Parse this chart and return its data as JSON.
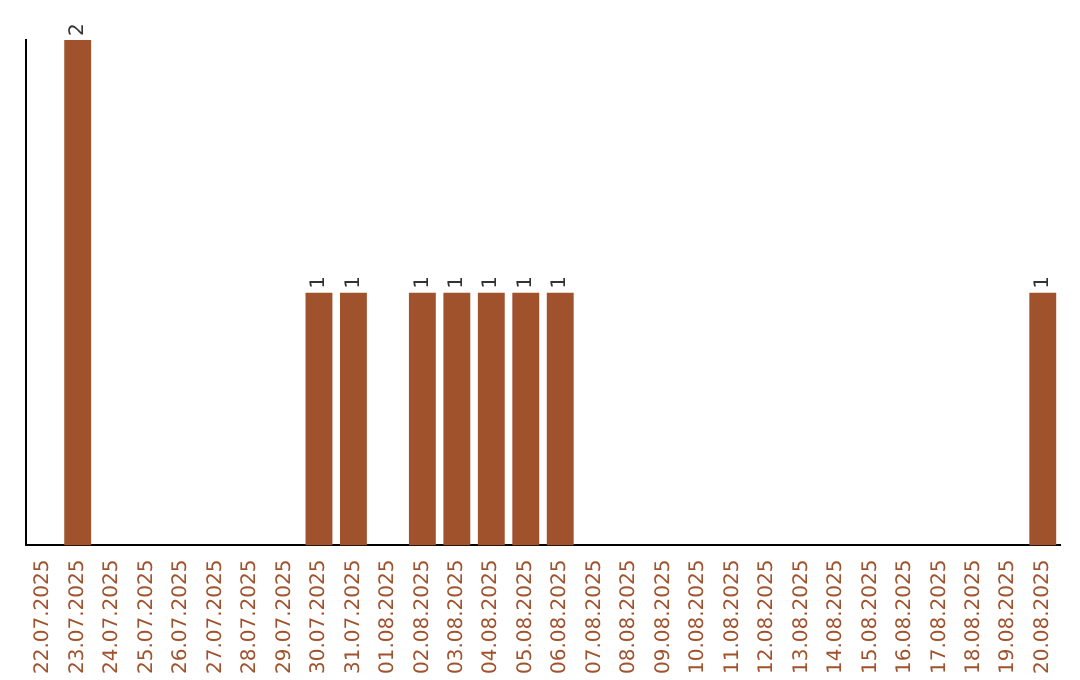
{
  "chart_data": {
    "type": "bar",
    "categories": [
      "22.07.2025",
      "23.07.2025",
      "24.07.2025",
      "25.07.2025",
      "26.07.2025",
      "27.07.2025",
      "28.07.2025",
      "29.07.2025",
      "30.07.2025",
      "31.07.2025",
      "01.08.2025",
      "02.08.2025",
      "03.08.2025",
      "04.08.2025",
      "05.08.2025",
      "06.08.2025",
      "07.08.2025",
      "08.08.2025",
      "09.08.2025",
      "10.08.2025",
      "11.08.2025",
      "12.08.2025",
      "13.08.2025",
      "14.08.2025",
      "15.08.2025",
      "16.08.2025",
      "17.08.2025",
      "18.08.2025",
      "19.08.2025",
      "20.08.2025"
    ],
    "values": [
      0,
      2,
      0,
      0,
      0,
      0,
      0,
      0,
      1,
      1,
      0,
      1,
      1,
      1,
      1,
      1,
      0,
      0,
      0,
      0,
      0,
      0,
      0,
      0,
      0,
      0,
      0,
      0,
      0,
      1
    ],
    "value_labels": [
      null,
      "2",
      null,
      null,
      null,
      null,
      null,
      null,
      "1",
      "1",
      null,
      "1",
      "1",
      "1",
      "1",
      "1",
      null,
      null,
      null,
      null,
      null,
      null,
      null,
      null,
      null,
      null,
      null,
      null,
      null,
      "1"
    ],
    "color": "#a0522d",
    "grid": false,
    "legend": false
  }
}
